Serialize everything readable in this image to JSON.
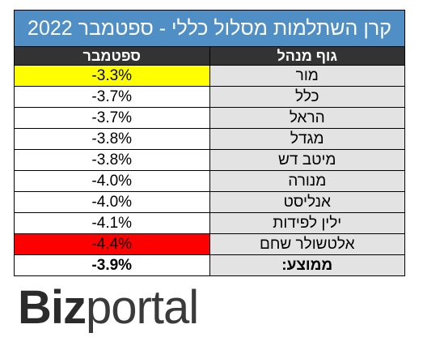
{
  "header": {
    "title": "קרן השתלמות מסלול כללי - ספטמבר 2022"
  },
  "table": {
    "columns": [
      "ספטמבר",
      "גוף מנהל"
    ],
    "rows": [
      [
        "-3.3%",
        "מור"
      ],
      [
        "-3.7%",
        "כלל"
      ],
      [
        "-3.7%",
        "הראל"
      ],
      [
        "-3.8%",
        "מגדל"
      ],
      [
        "-3.8%",
        "מיטב דש"
      ],
      [
        "-4.0%",
        "מנורה"
      ],
      [
        "-4.0%",
        "אנליסט"
      ],
      [
        "-4.1%",
        "ילין לפידות"
      ],
      [
        "-4.4%",
        "אלטשולר שחם"
      ],
      [
        "-3.9%",
        "ממוצע:"
      ]
    ]
  },
  "logo": {
    "brand": "Biz",
    "suffix": "portal"
  }
}
